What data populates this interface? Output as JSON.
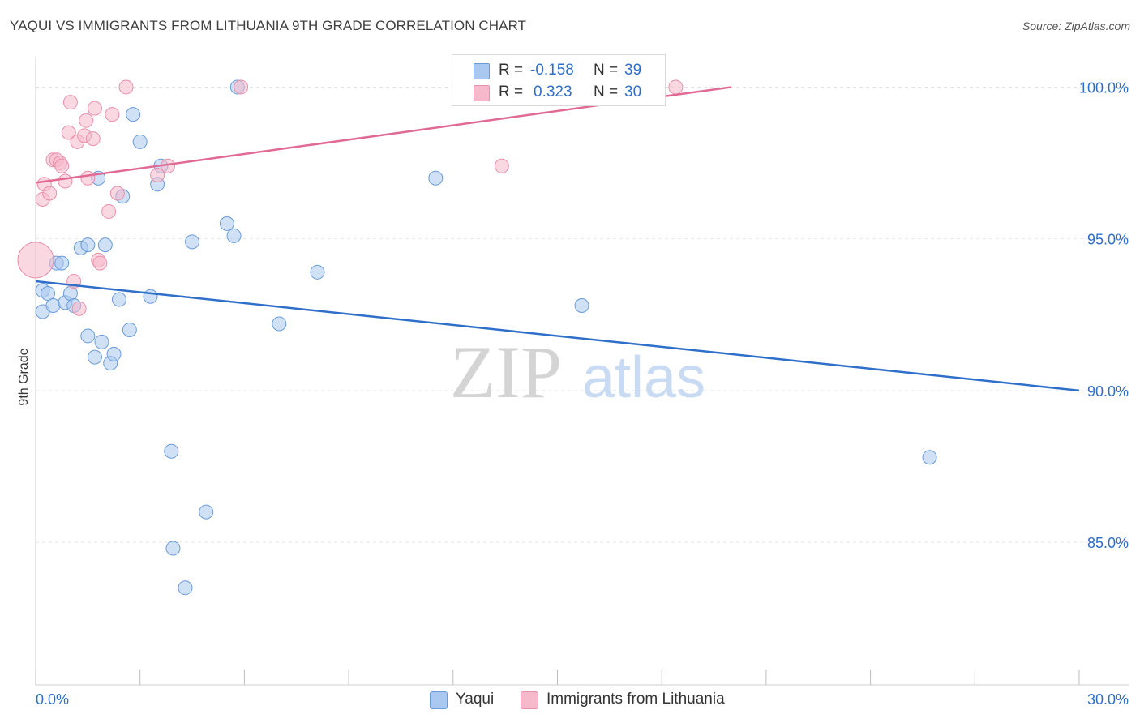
{
  "header": {
    "title": "YAQUI VS IMMIGRANTS FROM LITHUANIA 9TH GRADE CORRELATION CHART",
    "source": "Source: ZipAtlas.com"
  },
  "watermark": {
    "zip": "ZIP",
    "atlas": "atlas"
  },
  "legend": {
    "series": [
      {
        "r_label": "R =",
        "r_value": "-0.158",
        "n_label": "N =",
        "n_value": "39"
      },
      {
        "r_label": "R =",
        "r_value": "0.323",
        "n_label": "N =",
        "n_value": "30"
      }
    ],
    "bottom": [
      "Yaqui",
      "Immigrants from Lithuania"
    ]
  },
  "colors": {
    "blue_fill": "#a9c8ef",
    "blue_stroke": "#6a9bd8",
    "blue_line": "#2f6fc9",
    "pink_fill": "#f6b8cb",
    "pink_stroke": "#e890ab",
    "pink_line": "#e06a94",
    "axis_text": "#2f6fc9",
    "grid": "#e6e6e6"
  },
  "chart_data": {
    "type": "scatter",
    "title": "YAQUI VS IMMIGRANTS FROM LITHUANIA 9TH GRADE CORRELATION CHART",
    "xlabel": "",
    "ylabel": "9th Grade",
    "xlim": [
      0,
      30
    ],
    "ylim": [
      80.3,
      101
    ],
    "x_tick_labels": [
      "0.0%",
      "30.0%"
    ],
    "y_ticks": [
      85,
      90,
      95,
      100
    ],
    "y_tick_labels": [
      "85.0%",
      "90.0%",
      "95.0%",
      "100.0%"
    ],
    "series": [
      {
        "name": "Yaqui",
        "color": "blue",
        "r": -0.158,
        "n": 39,
        "trend": {
          "x": [
            0,
            30
          ],
          "y": [
            93.6,
            90.0
          ]
        },
        "points": [
          {
            "x": 0.2,
            "y": 93.3
          },
          {
            "x": 0.2,
            "y": 92.6
          },
          {
            "x": 0.35,
            "y": 93.2
          },
          {
            "x": 0.5,
            "y": 92.8
          },
          {
            "x": 0.6,
            "y": 94.2
          },
          {
            "x": 0.75,
            "y": 94.2
          },
          {
            "x": 0.85,
            "y": 92.9
          },
          {
            "x": 1.0,
            "y": 93.2
          },
          {
            "x": 1.1,
            "y": 92.8
          },
          {
            "x": 1.3,
            "y": 94.7
          },
          {
            "x": 1.5,
            "y": 94.8
          },
          {
            "x": 1.5,
            "y": 91.8
          },
          {
            "x": 1.7,
            "y": 91.1
          },
          {
            "x": 1.8,
            "y": 97.0
          },
          {
            "x": 1.9,
            "y": 91.6
          },
          {
            "x": 2.0,
            "y": 94.8
          },
          {
            "x": 2.15,
            "y": 90.9
          },
          {
            "x": 2.25,
            "y": 91.2
          },
          {
            "x": 2.4,
            "y": 93.0
          },
          {
            "x": 2.5,
            "y": 96.4
          },
          {
            "x": 2.7,
            "y": 92.0
          },
          {
            "x": 2.8,
            "y": 99.1
          },
          {
            "x": 3.0,
            "y": 98.2
          },
          {
            "x": 3.3,
            "y": 93.1
          },
          {
            "x": 3.5,
            "y": 96.8
          },
          {
            "x": 3.6,
            "y": 97.4
          },
          {
            "x": 3.9,
            "y": 88.0
          },
          {
            "x": 3.95,
            "y": 84.8
          },
          {
            "x": 4.3,
            "y": 83.5
          },
          {
            "x": 4.5,
            "y": 94.9
          },
          {
            "x": 4.9,
            "y": 86.0
          },
          {
            "x": 5.5,
            "y": 95.5
          },
          {
            "x": 5.7,
            "y": 95.1
          },
          {
            "x": 5.8,
            "y": 100.0
          },
          {
            "x": 7.0,
            "y": 92.2
          },
          {
            "x": 8.1,
            "y": 93.9
          },
          {
            "x": 11.5,
            "y": 97.0
          },
          {
            "x": 15.7,
            "y": 92.8
          },
          {
            "x": 25.7,
            "y": 87.8
          }
        ]
      },
      {
        "name": "Immigrants from Lithuania",
        "color": "pink",
        "r": 0.323,
        "n": 30,
        "trend": {
          "x": [
            0,
            20
          ],
          "y": [
            96.85,
            100.0
          ]
        },
        "points": [
          {
            "x": 0.0,
            "y": 94.3
          },
          {
            "x": 0.2,
            "y": 96.3
          },
          {
            "x": 0.25,
            "y": 96.8
          },
          {
            "x": 0.4,
            "y": 96.5
          },
          {
            "x": 0.5,
            "y": 97.6
          },
          {
            "x": 0.6,
            "y": 97.6
          },
          {
            "x": 0.7,
            "y": 97.5
          },
          {
            "x": 0.75,
            "y": 97.4
          },
          {
            "x": 0.85,
            "y": 96.9
          },
          {
            "x": 0.95,
            "y": 98.5
          },
          {
            "x": 1.0,
            "y": 99.5
          },
          {
            "x": 1.1,
            "y": 93.6
          },
          {
            "x": 1.2,
            "y": 98.2
          },
          {
            "x": 1.25,
            "y": 92.7
          },
          {
            "x": 1.4,
            "y": 98.4
          },
          {
            "x": 1.45,
            "y": 98.9
          },
          {
            "x": 1.5,
            "y": 97.0
          },
          {
            "x": 1.65,
            "y": 98.3
          },
          {
            "x": 1.7,
            "y": 99.3
          },
          {
            "x": 1.8,
            "y": 94.3
          },
          {
            "x": 1.85,
            "y": 94.2
          },
          {
            "x": 2.1,
            "y": 95.9
          },
          {
            "x": 2.2,
            "y": 99.1
          },
          {
            "x": 2.35,
            "y": 96.5
          },
          {
            "x": 2.6,
            "y": 100.0
          },
          {
            "x": 3.5,
            "y": 97.1
          },
          {
            "x": 3.8,
            "y": 97.4
          },
          {
            "x": 5.9,
            "y": 100.0
          },
          {
            "x": 13.4,
            "y": 97.4
          },
          {
            "x": 18.4,
            "y": 100.0
          }
        ]
      }
    ]
  }
}
